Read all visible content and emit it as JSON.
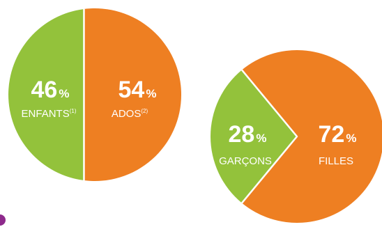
{
  "colors": {
    "green": "#93C23B",
    "orange": "#EE7F22",
    "magenta": "#8E2A8C"
  },
  "chart_data": [
    {
      "type": "pie",
      "slices": [
        {
          "label": "ENFANTS",
          "note": "(1)",
          "value": 46,
          "value_text": "46",
          "unit": "%",
          "color": "#93C23B"
        },
        {
          "label": "ADOS",
          "note": "(2)",
          "value": 54,
          "value_text": "54",
          "unit": "%",
          "color": "#EE7F22"
        }
      ]
    },
    {
      "type": "pie",
      "slices": [
        {
          "label": "GARÇONS",
          "note": "",
          "value": 28,
          "value_text": "28",
          "unit": "%",
          "color": "#93C23B"
        },
        {
          "label": "FILLES",
          "note": "",
          "value": 72,
          "value_text": "72",
          "unit": "%",
          "color": "#EE7F22"
        }
      ]
    }
  ]
}
